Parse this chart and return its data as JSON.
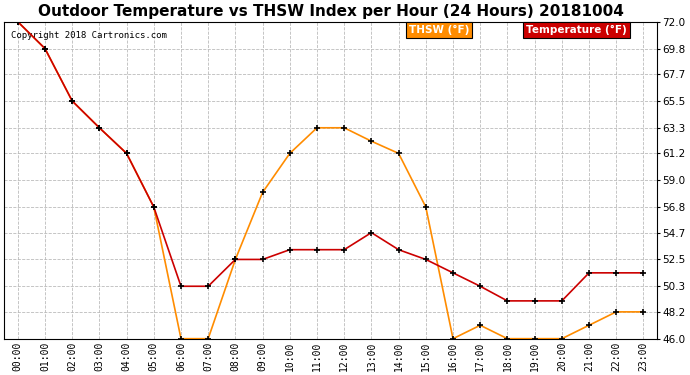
{
  "title": "Outdoor Temperature vs THSW Index per Hour (24 Hours) 20181004",
  "copyright": "Copyright 2018 Cartronics.com",
  "hours": [
    "00:00",
    "01:00",
    "02:00",
    "03:00",
    "04:00",
    "05:00",
    "06:00",
    "07:00",
    "08:00",
    "09:00",
    "10:00",
    "11:00",
    "12:00",
    "13:00",
    "14:00",
    "15:00",
    "16:00",
    "17:00",
    "18:00",
    "19:00",
    "20:00",
    "21:00",
    "22:00",
    "23:00"
  ],
  "temperature": [
    72.0,
    69.8,
    65.5,
    63.3,
    61.2,
    56.8,
    50.3,
    50.3,
    52.5,
    52.5,
    53.3,
    53.3,
    53.3,
    54.7,
    53.3,
    52.5,
    51.4,
    50.3,
    49.1,
    49.1,
    49.1,
    51.4,
    51.4,
    51.4
  ],
  "thsw": [
    72.0,
    69.8,
    65.5,
    63.3,
    61.2,
    56.8,
    46.0,
    46.0,
    52.5,
    58.0,
    61.2,
    63.3,
    63.3,
    62.2,
    61.2,
    56.8,
    46.0,
    47.1,
    46.0,
    46.0,
    46.0,
    47.1,
    48.2,
    48.2
  ],
  "temp_color": "#cc0000",
  "thsw_color": "#ff8c00",
  "marker": "+",
  "marker_color": "#000000",
  "ylim_min": 46.0,
  "ylim_max": 72.0,
  "yticks": [
    46.0,
    48.2,
    50.3,
    52.5,
    54.7,
    56.8,
    59.0,
    61.2,
    63.3,
    65.5,
    67.7,
    69.8,
    72.0
  ],
  "bg_color": "#ffffff",
  "grid_color": "#bbbbbb",
  "title_fontsize": 11,
  "legend_thsw_bg": "#ff8c00",
  "legend_temp_bg": "#cc0000",
  "legend_thsw_label": "THSW (°F)",
  "legend_temp_label": "Temperature (°F)"
}
